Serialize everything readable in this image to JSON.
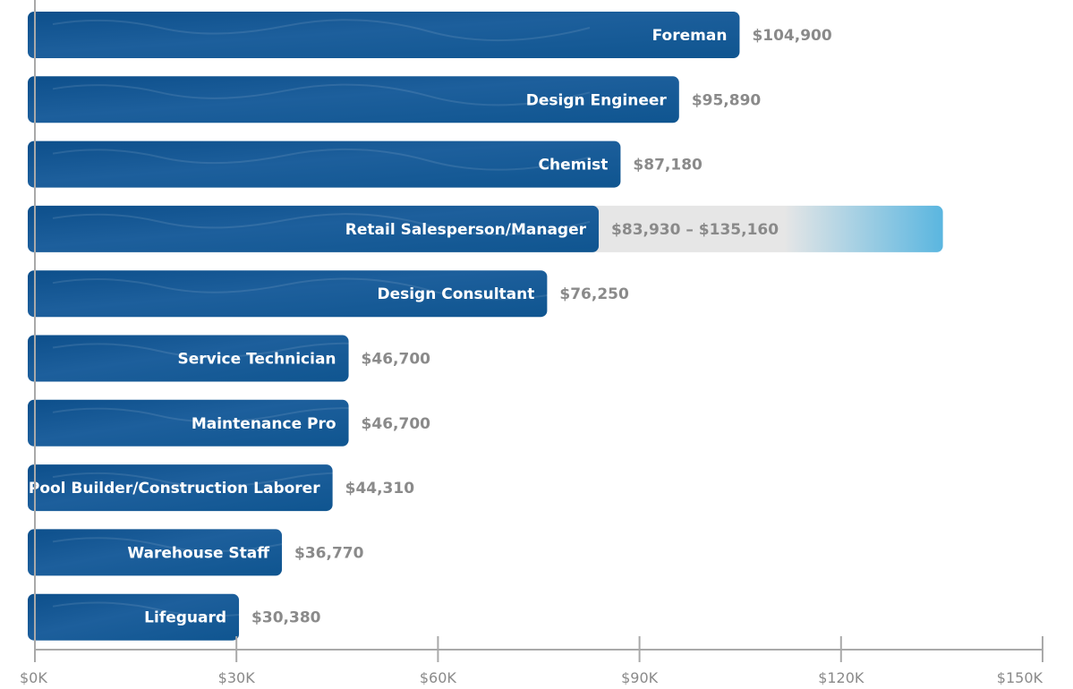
{
  "colors": {
    "bar_dark": "#0d4f8b",
    "bar_light": "#2e6fae",
    "range_gray": "#e6e6e6",
    "range_blue": "#5ab6e0",
    "axis": "#a9a9a9",
    "value_text": "#8a8a8a",
    "label_text": "#ffffff"
  },
  "chart_data": {
    "type": "bar",
    "orientation": "horizontal",
    "title": "",
    "xlabel": "",
    "ylabel": "",
    "xlim": [
      0,
      150000
    ],
    "grid": false,
    "categories": [
      "Foreman",
      "Design Engineer",
      "Chemist",
      "Retail Salesperson/Manager",
      "Design Consultant",
      "Service Technician",
      "Maintenance Pro",
      "Pool Builder/Construction Laborer",
      "Warehouse Staff",
      "Lifeguard"
    ],
    "values": [
      104900,
      95890,
      87180,
      83930,
      76250,
      46700,
      46700,
      44310,
      36770,
      30380
    ],
    "range_high": [
      null,
      null,
      null,
      135160,
      null,
      null,
      null,
      null,
      null,
      null
    ],
    "value_labels": [
      "$104,900",
      "$95,890",
      "$87,180",
      "$83,930 – $135,160",
      "$76,250",
      "$46,700",
      "$46,700",
      "$44,310",
      "$36,770",
      "$30,380"
    ],
    "ticks": [
      0,
      30000,
      60000,
      90000,
      120000,
      150000
    ],
    "tick_labels": [
      "$0K",
      "$30K",
      "$60K",
      "$90K",
      "$120K",
      "$150K"
    ]
  }
}
